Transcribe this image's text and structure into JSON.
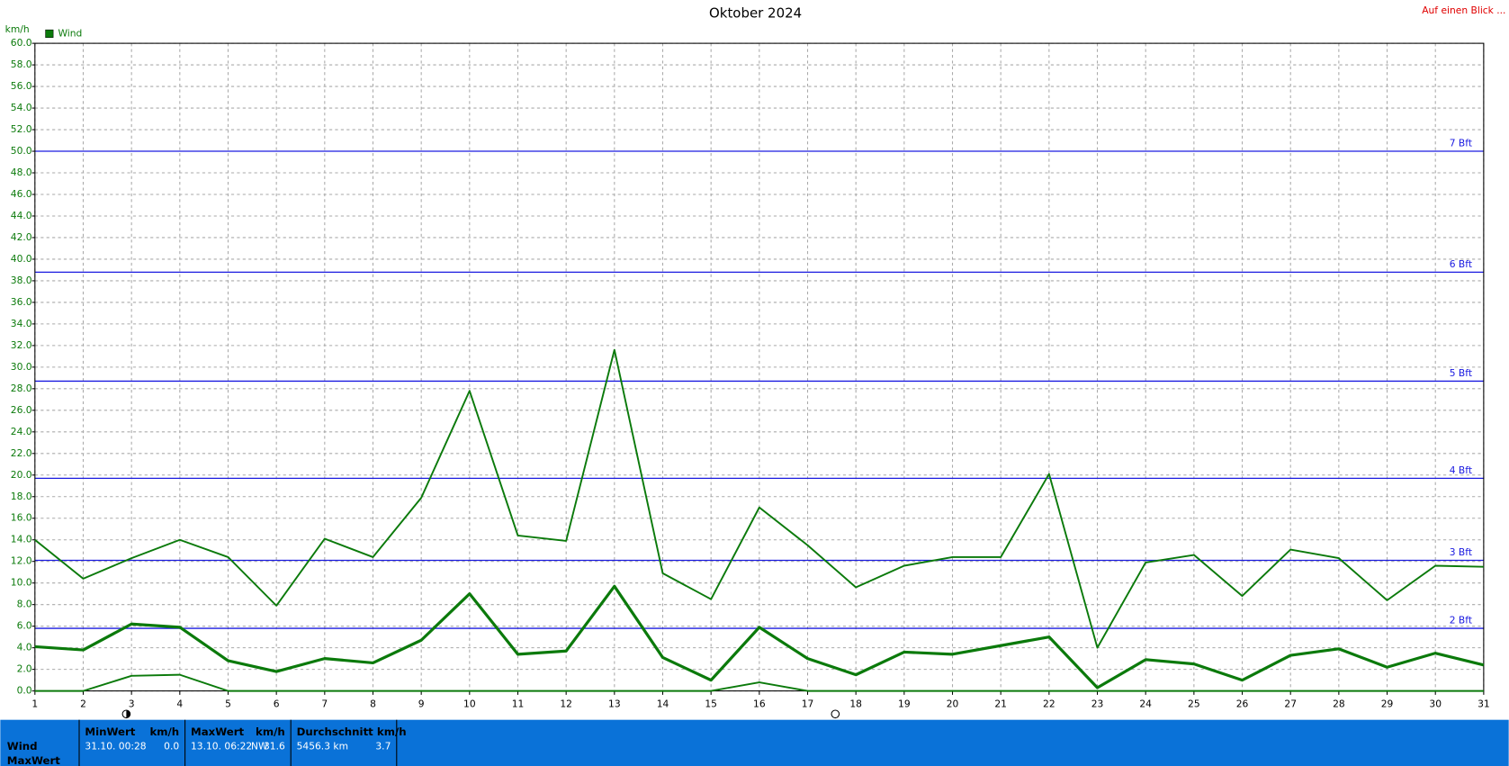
{
  "chart_data": {
    "type": "line",
    "title": "Oktober 2024",
    "y_label": "km/h",
    "legend": "Wind",
    "x": [
      1,
      2,
      3,
      4,
      5,
      6,
      7,
      8,
      9,
      10,
      11,
      12,
      13,
      14,
      15,
      16,
      17,
      18,
      19,
      20,
      21,
      22,
      23,
      24,
      25,
      26,
      27,
      28,
      29,
      30,
      31
    ],
    "xlim": [
      1,
      31
    ],
    "ylim": [
      0,
      60
    ],
    "yticks": [
      {
        "value": 0,
        "label": "0.0"
      },
      {
        "value": 2,
        "label": "2.0"
      },
      {
        "value": 4,
        "label": "4.0"
      },
      {
        "value": 6,
        "label": "6.0"
      },
      {
        "value": 8,
        "label": "8.0"
      },
      {
        "value": 10,
        "label": "10.0"
      },
      {
        "value": 12,
        "label": "12.0"
      },
      {
        "value": 14,
        "label": "14.0"
      },
      {
        "value": 16,
        "label": "16.0"
      },
      {
        "value": 18,
        "label": "18.0"
      },
      {
        "value": 20,
        "label": "20.0"
      },
      {
        "value": 22,
        "label": "22.0"
      },
      {
        "value": 24,
        "label": "24.0"
      },
      {
        "value": 26,
        "label": "26.0"
      },
      {
        "value": 28,
        "label": "28.0"
      },
      {
        "value": 30,
        "label": "30.0"
      },
      {
        "value": 32,
        "label": "32.0"
      },
      {
        "value": 34,
        "label": "34.0"
      },
      {
        "value": 36,
        "label": "36.0"
      },
      {
        "value": 38,
        "label": "38.0"
      },
      {
        "value": 40,
        "label": "40.0"
      },
      {
        "value": 42,
        "label": "42.0"
      },
      {
        "value": 44,
        "label": "44.0"
      },
      {
        "value": 46,
        "label": "46.0"
      },
      {
        "value": 48,
        "label": "48.0"
      },
      {
        "value": 50,
        "label": "50.0"
      },
      {
        "value": 52,
        "label": "52.0"
      },
      {
        "value": 54,
        "label": "54.0"
      },
      {
        "value": 56,
        "label": "56.0"
      },
      {
        "value": 58,
        "label": "58.0"
      },
      {
        "value": 60,
        "label": "60.0"
      }
    ],
    "grid": true,
    "series": [
      {
        "color": "#0b7a0b",
        "width": 1.8,
        "values": [
          14.0,
          10.4,
          12.3,
          14.0,
          12.4,
          7.9,
          14.1,
          12.4,
          17.9,
          27.8,
          14.4,
          13.9,
          31.6,
          10.9,
          8.5,
          17.0,
          13.5,
          9.6,
          11.6,
          12.4,
          12.4,
          20.1,
          4.0,
          11.9,
          12.6,
          8.8,
          13.1,
          12.3,
          8.4,
          11.6,
          11.5
        ]
      },
      {
        "color": "#0b7a0b",
        "width": 3,
        "values": [
          4.1,
          3.8,
          6.2,
          5.9,
          2.8,
          1.8,
          3.0,
          2.6,
          4.7,
          9.0,
          3.4,
          3.7,
          9.7,
          3.1,
          1.0,
          5.9,
          3.0,
          1.5,
          3.6,
          3.4,
          4.2,
          5.0,
          0.3,
          2.9,
          2.5,
          1.0,
          3.3,
          3.9,
          2.2,
          3.5,
          2.4
        ]
      },
      {
        "color": "#0b7a0b",
        "width": 1.8,
        "values": [
          0,
          0,
          1.4,
          1.5,
          0,
          0,
          0,
          0,
          0,
          0,
          0,
          0,
          0,
          0,
          0,
          0.8,
          0,
          0,
          0,
          0,
          0,
          0,
          0,
          0,
          0,
          0,
          0,
          0,
          0,
          0,
          0
        ]
      }
    ],
    "reference_lines": [
      {
        "value": 5.8,
        "label": "2 Bft"
      },
      {
        "value": 12.1,
        "label": "3 Bft"
      },
      {
        "value": 19.7,
        "label": "4 Bft"
      },
      {
        "value": 28.7,
        "label": "5 Bft"
      },
      {
        "value": 38.8,
        "label": "6 Bft"
      },
      {
        "value": 50.0,
        "label": "7 Bft"
      }
    ],
    "reference_color": "#1a1ae0"
  },
  "link": "Auf einen Blick ...",
  "stats": {
    "row_labels": [
      "Wind",
      "MaxWert"
    ],
    "columns": [
      {
        "header": "MinWert",
        "unit": "km/h",
        "cells": [
          "31.10.  00:28",
          "0.0"
        ]
      },
      {
        "header": "MaxWert",
        "unit": "km/h",
        "cells": [
          "13.10.  06:22",
          "NW",
          "31.6"
        ]
      },
      {
        "header": "Durchschnitt km/h",
        "cells": [
          "5456.3 km",
          "3.7"
        ]
      }
    ]
  }
}
